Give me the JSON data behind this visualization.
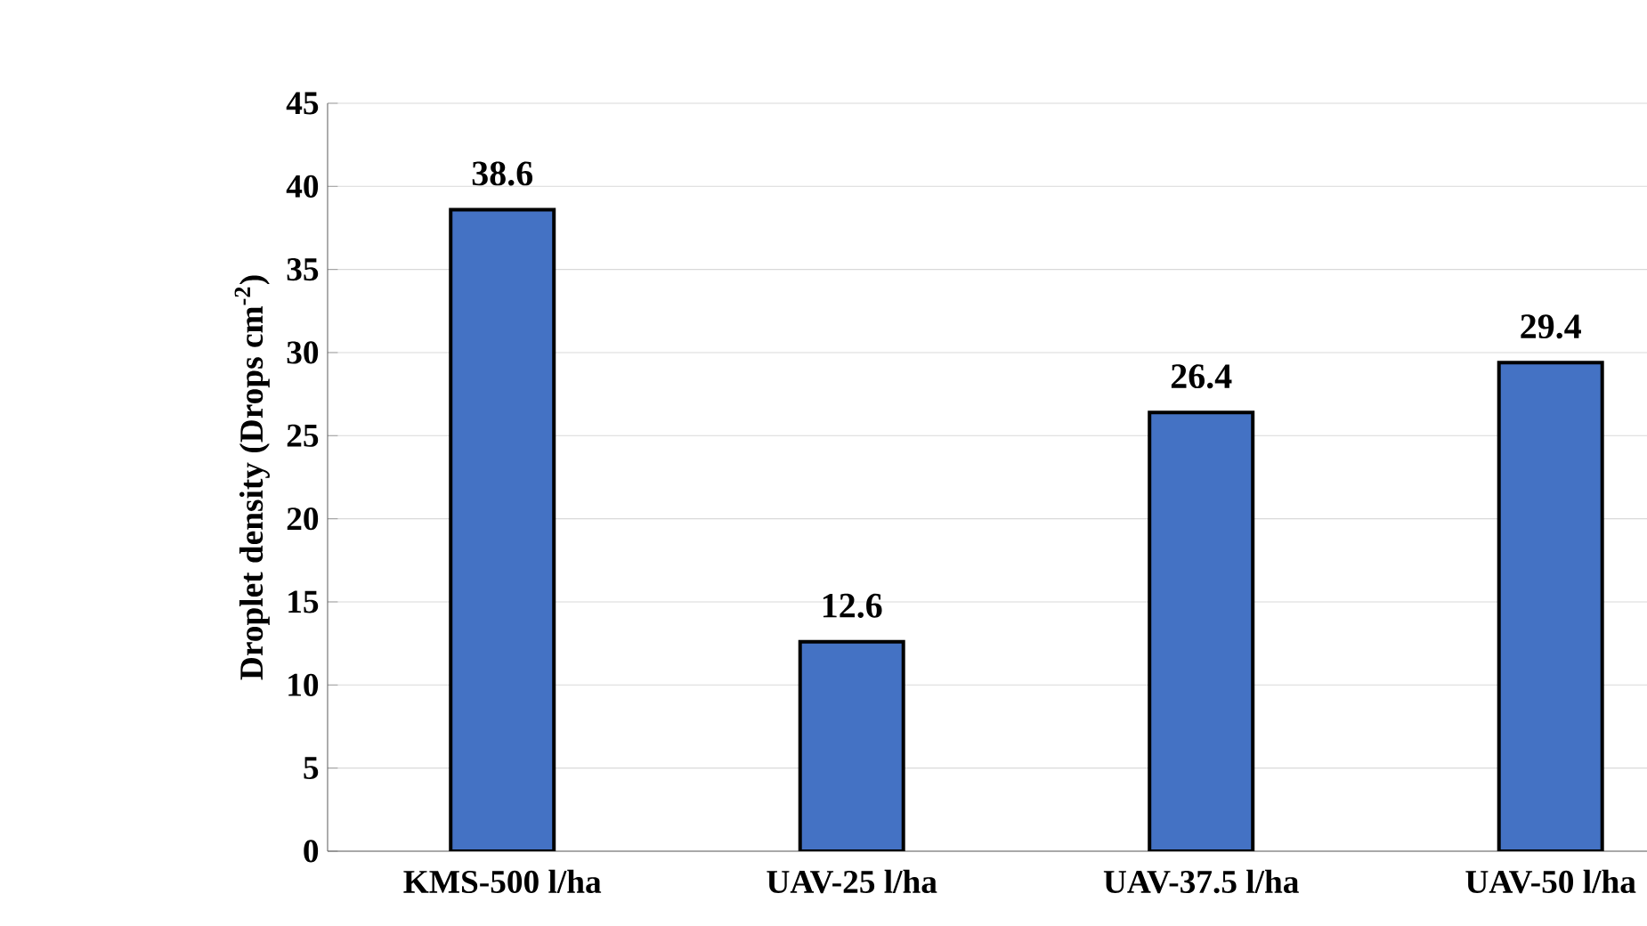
{
  "chart_data": {
    "type": "bar",
    "ylabel": "Droplet density (Drops cm$^{-2}$)",
    "categories": [
      "KMS-500 l/ha",
      "UAV-25 l/ha",
      "UAV-37.5 l/ha",
      "UAV-50 l/ha"
    ],
    "values": [
      38.6,
      12.6,
      26.4,
      29.4
    ],
    "color": "#4472c4",
    "ylim": [
      0,
      45
    ],
    "yticks": [
      0,
      5,
      10,
      15,
      20,
      25,
      30,
      35,
      40,
      45
    ],
    "grid": "y",
    "data_labels": true
  }
}
